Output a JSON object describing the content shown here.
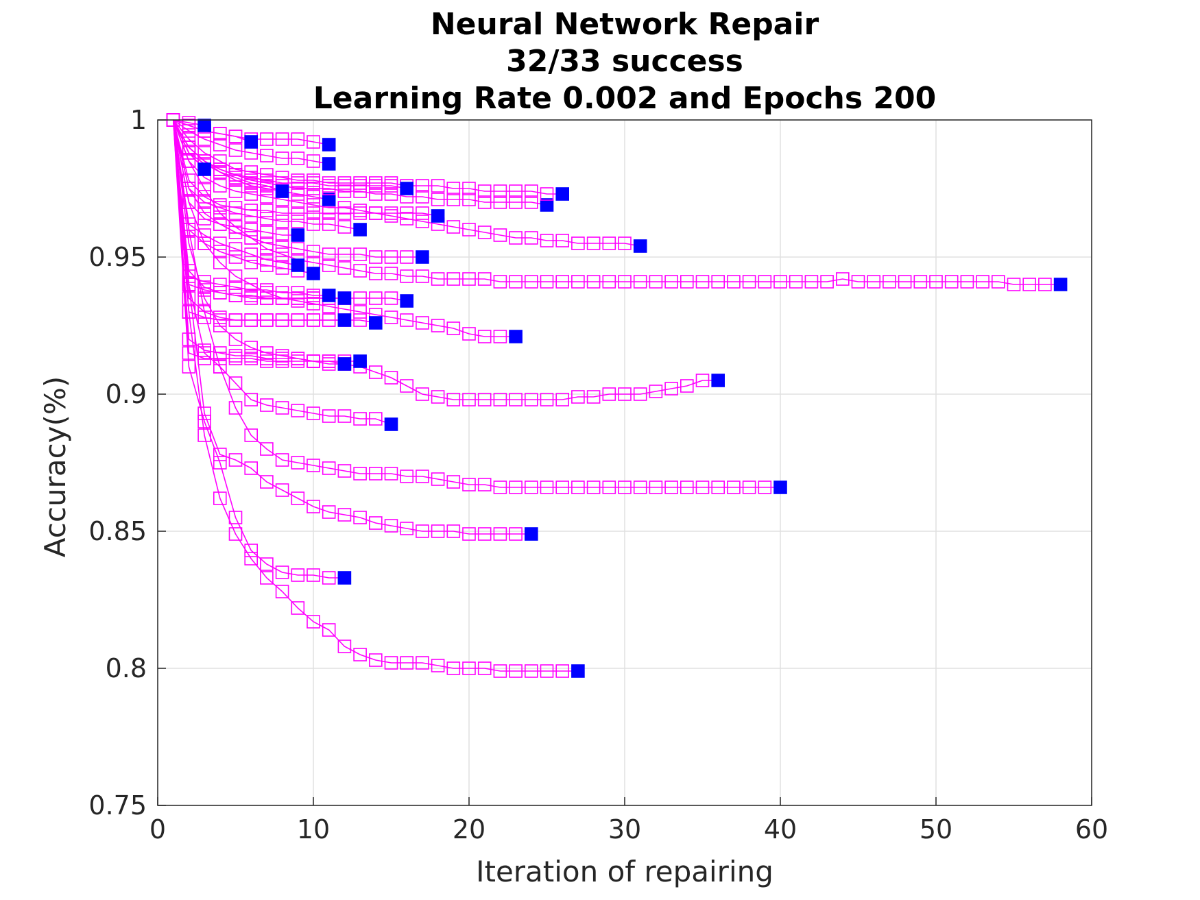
{
  "chart_data": {
    "type": "line",
    "title": [
      "Neural Network Repair",
      "32/33 success",
      "Learning Rate 0.002 and Epochs 200"
    ],
    "xlabel": "Iteration of repairing",
    "ylabel": "Accuracy(%)",
    "xlim": [
      0,
      60
    ],
    "ylim": [
      0.75,
      1
    ],
    "xticks": [
      "0",
      "10",
      "20",
      "30",
      "40",
      "50",
      "60"
    ],
    "yticks": [
      "0.75",
      "0.8",
      "0.85",
      "0.9",
      "0.95",
      "1"
    ],
    "grid": true,
    "colors": {
      "line": "#ff00ff",
      "final_marker": "#0000ff",
      "axis": "#262626",
      "grid": "#e0e0e0"
    },
    "series": [
      {
        "x": [
          1,
          2,
          3,
          4,
          5,
          6,
          7,
          8,
          9,
          10,
          11,
          12,
          13,
          14,
          15,
          16,
          17,
          18,
          19,
          20,
          21,
          22,
          23,
          24,
          25,
          26,
          27,
          28,
          29,
          30,
          31,
          32,
          33,
          34,
          35,
          36,
          37,
          38,
          39,
          40,
          41,
          42,
          43,
          44,
          45,
          46,
          47,
          48,
          49,
          50,
          51,
          52,
          53,
          54,
          55,
          56,
          57,
          58
        ],
        "y": [
          1,
          0.985,
          0.975,
          0.966,
          0.961,
          0.957,
          0.953,
          0.951,
          0.949,
          0.948,
          0.947,
          0.946,
          0.945,
          0.944,
          0.944,
          0.943,
          0.943,
          0.942,
          0.942,
          0.942,
          0.942,
          0.941,
          0.941,
          0.941,
          0.941,
          0.941,
          0.941,
          0.941,
          0.941,
          0.941,
          0.941,
          0.941,
          0.941,
          0.941,
          0.941,
          0.941,
          0.941,
          0.941,
          0.941,
          0.941,
          0.941,
          0.941,
          0.941,
          0.942,
          0.941,
          0.941,
          0.941,
          0.941,
          0.941,
          0.941,
          0.941,
          0.941,
          0.941,
          0.941,
          0.94,
          0.94,
          0.94,
          0.94
        ]
      },
      {
        "x": [
          1,
          2,
          3,
          4,
          5,
          6,
          7,
          8,
          9,
          10,
          11,
          12,
          13,
          14,
          15,
          16,
          17,
          18,
          19,
          20,
          21,
          22,
          23,
          24,
          25,
          26,
          27,
          28,
          29,
          30,
          31,
          32,
          33,
          34,
          35,
          36
        ],
        "y": [
          1,
          0.955,
          0.935,
          0.925,
          0.92,
          0.917,
          0.915,
          0.914,
          0.913,
          0.912,
          0.911,
          0.911,
          0.91,
          0.908,
          0.906,
          0.903,
          0.9,
          0.899,
          0.898,
          0.898,
          0.898,
          0.898,
          0.898,
          0.898,
          0.898,
          0.898,
          0.899,
          0.899,
          0.9,
          0.9,
          0.9,
          0.901,
          0.902,
          0.903,
          0.905,
          0.905
        ]
      },
      {
        "x": [
          1,
          2,
          3,
          4,
          5,
          6,
          7,
          8,
          9,
          10,
          11,
          12,
          13,
          14,
          15,
          16,
          17,
          18,
          19,
          20,
          21,
          22,
          23,
          24,
          25,
          26,
          27,
          28,
          29,
          30,
          31,
          32,
          33,
          34,
          35,
          36,
          37,
          38,
          39,
          40
        ],
        "y": [
          1,
          0.96,
          0.93,
          0.91,
          0.895,
          0.885,
          0.88,
          0.876,
          0.875,
          0.874,
          0.873,
          0.872,
          0.871,
          0.871,
          0.871,
          0.87,
          0.87,
          0.869,
          0.868,
          0.867,
          0.867,
          0.866,
          0.866,
          0.866,
          0.866,
          0.866,
          0.866,
          0.866,
          0.866,
          0.866,
          0.866,
          0.866,
          0.866,
          0.866,
          0.866,
          0.866,
          0.866,
          0.866,
          0.866,
          0.866
        ]
      },
      {
        "x": [
          1,
          2,
          3,
          4,
          5,
          6,
          7,
          8,
          9,
          10,
          11,
          12,
          13,
          14,
          15,
          16,
          17,
          18,
          19,
          20,
          21,
          22,
          23,
          24
        ],
        "y": [
          1,
          0.94,
          0.893,
          0.878,
          0.876,
          0.873,
          0.868,
          0.865,
          0.862,
          0.859,
          0.857,
          0.856,
          0.855,
          0.853,
          0.852,
          0.851,
          0.85,
          0.85,
          0.85,
          0.849,
          0.849,
          0.849,
          0.849,
          0.849
        ]
      },
      {
        "x": [
          1,
          2,
          3,
          4,
          5,
          6,
          7,
          8,
          9,
          10,
          11,
          12,
          13,
          14,
          15,
          16,
          17,
          18,
          19,
          20,
          21,
          22,
          23,
          24,
          25,
          26,
          27
        ],
        "y": [
          1,
          0.93,
          0.885,
          0.862,
          0.849,
          0.84,
          0.833,
          0.828,
          0.822,
          0.817,
          0.814,
          0.808,
          0.805,
          0.803,
          0.802,
          0.802,
          0.802,
          0.801,
          0.8,
          0.8,
          0.8,
          0.799,
          0.799,
          0.799,
          0.799,
          0.799,
          0.799
        ]
      },
      {
        "x": [
          1,
          2,
          3,
          4,
          5,
          6,
          7,
          8,
          9,
          10,
          11,
          12
        ],
        "y": [
          1,
          0.91,
          0.89,
          0.875,
          0.855,
          0.843,
          0.838,
          0.835,
          0.834,
          0.834,
          0.833,
          0.833
        ]
      },
      {
        "x": [
          1,
          2,
          3,
          4,
          5,
          6,
          7,
          8,
          9,
          10,
          11,
          12,
          13,
          14,
          15
        ],
        "y": [
          1,
          0.94,
          0.915,
          0.91,
          0.904,
          0.898,
          0.896,
          0.895,
          0.894,
          0.893,
          0.892,
          0.892,
          0.891,
          0.891,
          0.889
        ]
      },
      {
        "x": [
          1,
          2,
          3,
          4,
          5,
          6,
          7,
          8,
          9,
          10,
          11,
          12,
          13
        ],
        "y": [
          1,
          0.92,
          0.916,
          0.915,
          0.914,
          0.914,
          0.913,
          0.913,
          0.913,
          0.912,
          0.912,
          0.912,
          0.912
        ]
      },
      {
        "x": [
          1,
          2,
          3,
          4,
          5,
          6,
          7,
          8,
          9,
          10,
          11,
          12
        ],
        "y": [
          1,
          0.915,
          0.913,
          0.913,
          0.913,
          0.913,
          0.912,
          0.912,
          0.912,
          0.912,
          0.912,
          0.911
        ]
      },
      {
        "x": [
          1,
          2,
          3,
          4,
          5,
          6,
          7,
          8,
          9,
          10,
          11,
          12,
          13,
          14,
          15,
          16,
          17,
          18,
          19,
          20,
          21,
          22,
          23
        ],
        "y": [
          1,
          0.97,
          0.955,
          0.948,
          0.943,
          0.94,
          0.937,
          0.935,
          0.934,
          0.933,
          0.932,
          0.931,
          0.93,
          0.929,
          0.928,
          0.927,
          0.926,
          0.925,
          0.924,
          0.922,
          0.921,
          0.921,
          0.921
        ]
      },
      {
        "x": [
          1,
          2,
          3,
          4,
          5,
          6,
          7,
          8,
          9,
          10,
          11,
          12,
          13,
          14
        ],
        "y": [
          1,
          0.935,
          0.93,
          0.928,
          0.927,
          0.927,
          0.927,
          0.927,
          0.927,
          0.927,
          0.927,
          0.927,
          0.927,
          0.926
        ]
      },
      {
        "x": [
          1,
          2,
          3,
          4,
          5,
          6,
          7,
          8,
          9,
          10,
          11,
          12
        ],
        "y": [
          1,
          0.93,
          0.928,
          0.927,
          0.927,
          0.927,
          0.927,
          0.927,
          0.927,
          0.927,
          0.927,
          0.927
        ]
      },
      {
        "x": [
          1,
          2,
          3,
          4,
          5,
          6,
          7,
          8,
          9,
          10,
          11,
          12,
          13,
          14,
          15,
          16
        ],
        "y": [
          1,
          0.945,
          0.939,
          0.937,
          0.936,
          0.935,
          0.935,
          0.935,
          0.935,
          0.935,
          0.935,
          0.935,
          0.935,
          0.935,
          0.935,
          0.934
        ]
      },
      {
        "x": [
          1,
          2,
          3,
          4,
          5,
          6,
          7,
          8,
          9,
          10,
          11,
          12
        ],
        "y": [
          1,
          0.94,
          0.938,
          0.937,
          0.936,
          0.936,
          0.935,
          0.935,
          0.935,
          0.935,
          0.935,
          0.935
        ]
      },
      {
        "x": [
          1,
          2,
          3,
          4,
          5,
          6,
          7,
          8,
          9,
          10,
          11
        ],
        "y": [
          1,
          0.943,
          0.941,
          0.94,
          0.939,
          0.938,
          0.938,
          0.937,
          0.937,
          0.936,
          0.936
        ]
      },
      {
        "x": [
          1,
          2,
          3,
          4,
          5,
          6,
          7,
          8,
          9,
          10
        ],
        "y": [
          1,
          0.96,
          0.955,
          0.952,
          0.95,
          0.948,
          0.947,
          0.946,
          0.945,
          0.944
        ]
      },
      {
        "x": [
          1,
          2,
          3,
          4,
          5,
          6,
          7,
          8,
          9
        ],
        "y": [
          1,
          0.962,
          0.958,
          0.955,
          0.953,
          0.951,
          0.949,
          0.948,
          0.947
        ]
      },
      {
        "x": [
          1,
          2,
          3,
          4,
          5,
          6,
          7,
          8,
          9,
          10,
          11,
          12,
          13,
          14,
          15,
          16,
          17
        ],
        "y": [
          1,
          0.975,
          0.966,
          0.962,
          0.959,
          0.957,
          0.955,
          0.954,
          0.953,
          0.952,
          0.951,
          0.951,
          0.951,
          0.95,
          0.95,
          0.95,
          0.95
        ]
      },
      {
        "x": [
          1,
          2,
          3,
          4,
          5,
          6,
          7,
          8,
          9
        ],
        "y": [
          1,
          0.97,
          0.964,
          0.962,
          0.961,
          0.96,
          0.959,
          0.958,
          0.958
        ]
      },
      {
        "x": [
          1,
          2,
          3,
          4,
          5,
          6,
          7,
          8,
          9,
          10,
          11,
          12,
          13,
          14,
          15,
          16,
          17,
          18,
          19,
          20,
          21,
          22,
          23,
          24,
          25,
          26,
          27,
          28,
          29,
          30,
          31
        ],
        "y": [
          1,
          0.985,
          0.979,
          0.976,
          0.974,
          0.973,
          0.972,
          0.971,
          0.97,
          0.969,
          0.968,
          0.968,
          0.967,
          0.966,
          0.965,
          0.964,
          0.963,
          0.962,
          0.961,
          0.96,
          0.959,
          0.958,
          0.957,
          0.957,
          0.956,
          0.956,
          0.955,
          0.955,
          0.955,
          0.955,
          0.954
        ]
      },
      {
        "x": [
          1,
          2,
          3,
          4,
          5,
          6,
          7,
          8,
          9,
          10,
          11,
          12,
          13,
          14,
          15,
          16,
          17,
          18
        ],
        "y": [
          1,
          0.978,
          0.972,
          0.969,
          0.968,
          0.967,
          0.967,
          0.966,
          0.966,
          0.966,
          0.966,
          0.966,
          0.966,
          0.966,
          0.966,
          0.966,
          0.966,
          0.965
        ]
      },
      {
        "x": [
          1,
          2,
          3,
          4,
          5,
          6,
          7,
          8,
          9,
          10,
          11,
          12,
          13
        ],
        "y": [
          1,
          0.975,
          0.97,
          0.968,
          0.966,
          0.965,
          0.964,
          0.963,
          0.963,
          0.962,
          0.962,
          0.961,
          0.96
        ]
      },
      {
        "x": [
          1,
          2,
          3,
          4,
          5,
          6,
          7,
          8,
          9,
          10,
          11
        ],
        "y": [
          1,
          0.988,
          0.984,
          0.981,
          0.978,
          0.976,
          0.975,
          0.974,
          0.973,
          0.972,
          0.971
        ]
      },
      {
        "x": [
          1,
          2,
          3,
          4,
          5,
          6,
          7,
          8,
          9,
          10,
          11,
          12,
          13,
          14,
          15,
          16,
          17,
          18,
          19,
          20,
          21,
          22,
          23,
          24,
          25
        ],
        "y": [
          1,
          0.99,
          0.985,
          0.982,
          0.98,
          0.978,
          0.977,
          0.976,
          0.975,
          0.975,
          0.975,
          0.974,
          0.974,
          0.973,
          0.973,
          0.972,
          0.972,
          0.971,
          0.971,
          0.971,
          0.97,
          0.97,
          0.97,
          0.97,
          0.969
        ]
      },
      {
        "x": [
          1,
          2,
          3,
          4,
          5,
          6,
          7,
          8,
          9,
          10,
          11,
          12,
          13,
          14,
          15,
          16,
          17,
          18,
          19,
          20,
          21,
          22,
          23,
          24,
          25,
          26
        ],
        "y": [
          1,
          0.993,
          0.988,
          0.985,
          0.982,
          0.981,
          0.98,
          0.979,
          0.978,
          0.978,
          0.977,
          0.977,
          0.977,
          0.977,
          0.977,
          0.976,
          0.976,
          0.976,
          0.975,
          0.975,
          0.974,
          0.974,
          0.974,
          0.974,
          0.973,
          0.973
        ]
      },
      {
        "x": [
          1,
          2,
          3,
          4,
          5,
          6,
          7,
          8,
          9,
          10,
          11,
          12,
          13,
          14,
          15,
          16
        ],
        "y": [
          1,
          0.99,
          0.985,
          0.982,
          0.98,
          0.979,
          0.978,
          0.977,
          0.977,
          0.977,
          0.976,
          0.976,
          0.976,
          0.976,
          0.976,
          0.975
        ]
      },
      {
        "x": [
          1,
          2,
          3,
          4,
          5,
          6,
          7,
          8
        ],
        "y": [
          1,
          0.99,
          0.985,
          0.981,
          0.979,
          0.977,
          0.976,
          0.974
        ]
      },
      {
        "x": [
          1,
          2,
          3
        ],
        "y": [
          1,
          0.988,
          0.982
        ]
      },
      {
        "x": [
          1,
          2,
          3,
          4,
          5,
          6,
          7,
          8,
          9,
          10,
          11
        ],
        "y": [
          1,
          0.996,
          0.993,
          0.991,
          0.989,
          0.988,
          0.987,
          0.986,
          0.986,
          0.985,
          0.984
        ]
      },
      {
        "x": [
          1,
          2,
          3,
          4,
          5,
          6,
          7,
          8,
          9,
          10,
          11
        ],
        "y": [
          1,
          0.998,
          0.996,
          0.995,
          0.994,
          0.993,
          0.993,
          0.993,
          0.993,
          0.992,
          0.991
        ]
      },
      {
        "x": [
          1,
          2,
          3,
          4,
          5,
          6
        ],
        "y": [
          1,
          0.998,
          0.996,
          0.995,
          0.994,
          0.992
        ]
      },
      {
        "x": [
          1,
          2,
          3
        ],
        "y": [
          1,
          0.999,
          0.998
        ]
      }
    ]
  }
}
